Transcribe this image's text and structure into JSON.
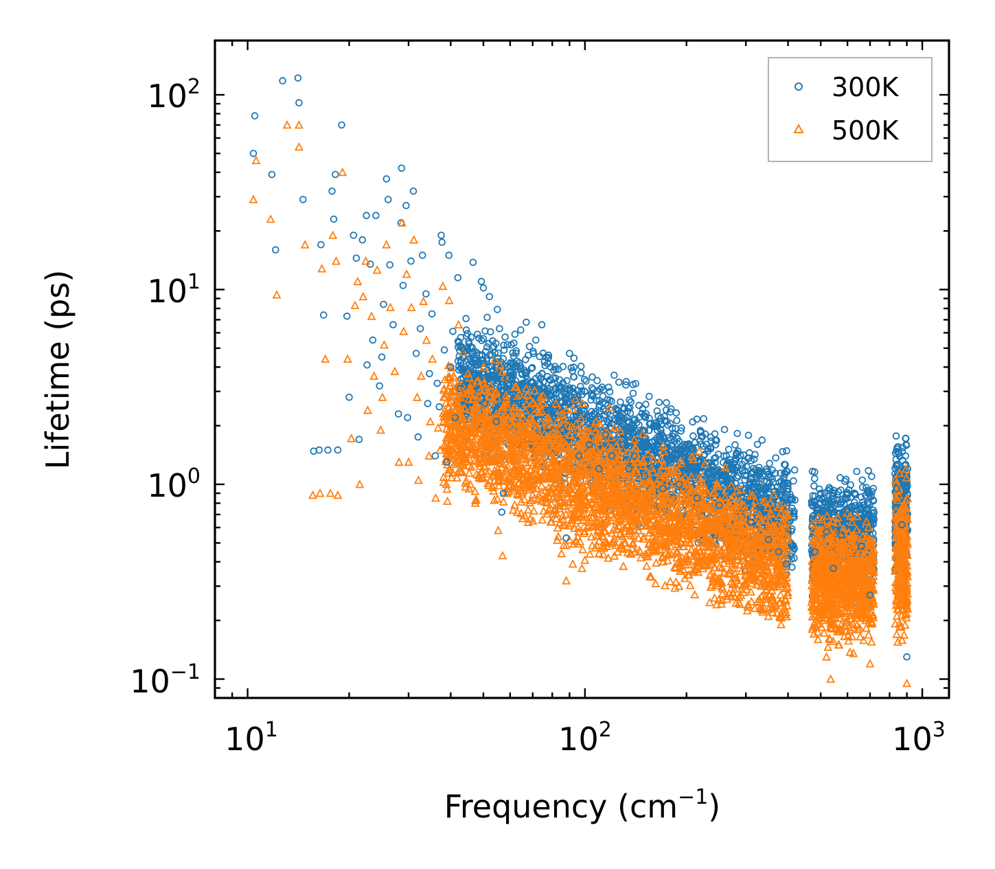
{
  "chart_data": {
    "type": "scatter",
    "title": "",
    "xlabel": "Frequency (cm",
    "xlabel_sup": "−1",
    "xlabel_end": ")",
    "ylabel": "Lifetime (ps)",
    "xscale": "log",
    "yscale": "log",
    "xlim": [
      8,
      1200
    ],
    "ylim": [
      0.08,
      190
    ],
    "x_ticks": [
      {
        "value": 10,
        "base": "10",
        "exp": "1"
      },
      {
        "value": 100,
        "base": "10",
        "exp": "2"
      },
      {
        "value": 1000,
        "base": "10",
        "exp": "3"
      }
    ],
    "y_ticks": [
      {
        "value": 0.1,
        "base": "10",
        "exp": "−1"
      },
      {
        "value": 1,
        "base": "10",
        "exp": "0"
      },
      {
        "value": 10,
        "base": "10",
        "exp": "1"
      },
      {
        "value": 100,
        "base": "10",
        "exp": "2"
      }
    ],
    "legend_position": "top-right",
    "series": [
      {
        "name": "300K",
        "marker": "circle",
        "color": "#1f77b4",
        "points": [
          [
            10.5,
            78
          ],
          [
            10.4,
            50
          ],
          [
            11.8,
            39
          ],
          [
            12.1,
            16
          ],
          [
            12.7,
            118
          ],
          [
            14.1,
            122
          ],
          [
            14.2,
            91
          ],
          [
            14.6,
            29
          ],
          [
            15.7,
            1.48
          ],
          [
            16.3,
            1.5
          ],
          [
            16.5,
            17
          ],
          [
            16.8,
            7.4
          ],
          [
            17.3,
            1.5
          ],
          [
            17.8,
            32
          ],
          [
            18.0,
            23
          ],
          [
            18.2,
            39
          ],
          [
            18.5,
            1.5
          ],
          [
            19.0,
            70
          ],
          [
            19.7,
            7.3
          ],
          [
            20.0,
            2.8
          ],
          [
            20.6,
            19
          ],
          [
            21.0,
            14.5
          ],
          [
            21.4,
            1.7
          ],
          [
            21.9,
            18
          ],
          [
            22.5,
            24
          ],
          [
            22.6,
            4.1
          ],
          [
            23.1,
            13.5
          ],
          [
            23.5,
            5.5
          ],
          [
            24.0,
            24
          ],
          [
            24.6,
            3.2
          ],
          [
            25.0,
            4.5
          ],
          [
            25.3,
            8.4
          ],
          [
            25.8,
            37
          ],
          [
            26.1,
            29
          ],
          [
            26.4,
            13.4
          ],
          [
            27.0,
            6.6
          ],
          [
            28.0,
            2.3
          ],
          [
            28.5,
            22
          ],
          [
            28.6,
            42
          ],
          [
            28.9,
            10.5
          ],
          [
            29.5,
            27
          ],
          [
            29.8,
            2.2
          ],
          [
            30.5,
            14
          ],
          [
            31.0,
            32
          ],
          [
            31.6,
            4.7
          ],
          [
            32.0,
            1.75
          ],
          [
            32.5,
            6.3
          ],
          [
            33.0,
            15
          ],
          [
            33.8,
            9.5
          ],
          [
            34.2,
            2.6
          ],
          [
            34.6,
            3.7
          ],
          [
            35.2,
            7.5
          ],
          [
            36.0,
            1.4
          ],
          [
            36.5,
            3.3
          ],
          [
            37.0,
            2.5
          ],
          [
            37.5,
            19
          ],
          [
            37.7,
            17.5
          ],
          [
            38.3,
            4.9
          ],
          [
            39.0,
            1.3
          ],
          [
            39.5,
            15
          ],
          [
            40.0,
            4.0
          ],
          [
            40.6,
            6.1
          ],
          [
            41.2,
            2.2
          ],
          [
            42.0,
            11.5
          ],
          [
            42.7,
            3.1
          ],
          [
            43.2,
            5.0
          ],
          [
            44.0,
            3.2
          ],
          [
            44.5,
            6.2
          ],
          [
            45.0,
            3.6
          ],
          [
            46.0,
            5.7
          ],
          [
            46.6,
            13.8
          ],
          [
            47.3,
            4.1
          ],
          [
            48.0,
            5.9
          ],
          [
            48.7,
            3.6
          ],
          [
            49.3,
            11
          ],
          [
            50.0,
            10.2
          ],
          [
            50.5,
            2.6
          ],
          [
            51.3,
            7.2
          ],
          [
            52.1,
            9.2
          ],
          [
            53.0,
            4.6
          ],
          [
            53.7,
            5.1
          ],
          [
            54.6,
            2.1
          ],
          [
            55.0,
            7.9
          ],
          [
            55.8,
            6.3
          ],
          [
            56.7,
            0.72
          ],
          [
            57.3,
            0.9
          ],
          [
            58.0,
            5.7
          ],
          [
            59.0,
            3.5
          ],
          [
            60.0,
            4.2
          ],
          [
            61.5,
            2.9
          ],
          [
            62.0,
            5.9
          ],
          [
            63.0,
            4.0
          ],
          [
            64.5,
            6.2
          ],
          [
            66.0,
            3.1
          ],
          [
            67.0,
            6.8
          ],
          [
            68.5,
            5.1
          ],
          [
            70.0,
            2.5
          ],
          [
            71.5,
            5.5
          ],
          [
            73.0,
            3.6
          ],
          [
            74.5,
            6.6
          ],
          [
            76.0,
            3.1
          ],
          [
            78.0,
            4.6
          ],
          [
            80.0,
            2.7
          ],
          [
            82.0,
            3.9
          ],
          [
            84.0,
            2.5
          ],
          [
            86.0,
            1.9
          ],
          [
            88.0,
            0.53
          ],
          [
            90.0,
            4.7
          ],
          [
            93.0,
            2.9
          ],
          [
            96.0,
            1.4
          ],
          [
            100.0,
            2.3
          ],
          [
            103.0,
            1.6
          ],
          [
            107.0,
            2.3
          ],
          [
            110.0,
            1.2
          ],
          [
            115.0,
            1.8
          ],
          [
            120.0,
            1.4
          ],
          [
            125.0,
            2.2
          ],
          [
            130.0,
            1.6
          ],
          [
            135.0,
            1.2
          ],
          [
            140.0,
            1.4
          ],
          [
            150.0,
            1.1
          ],
          [
            160.0,
            1.5
          ],
          [
            170.0,
            0.95
          ],
          [
            180.0,
            1.3
          ],
          [
            190.0,
            1.0
          ],
          [
            200.0,
            1.2
          ],
          [
            215.0,
            0.85
          ],
          [
            230.0,
            1.1
          ],
          [
            250.0,
            0.78
          ],
          [
            270.0,
            0.93
          ],
          [
            290.0,
            0.98
          ],
          [
            310.0,
            0.64
          ],
          [
            330.0,
            0.76
          ],
          [
            350.0,
            0.52
          ],
          [
            375.0,
            0.45
          ],
          [
            395.0,
            0.39
          ],
          [
            480.0,
            0.45
          ],
          [
            500.0,
            0.9
          ],
          [
            520.0,
            0.57
          ],
          [
            545.0,
            0.37
          ],
          [
            575.0,
            0.55
          ],
          [
            600.0,
            0.74
          ],
          [
            630.0,
            0.9
          ],
          [
            660.0,
            0.48
          ],
          [
            700.0,
            0.27
          ],
          [
            840.0,
            0.95
          ],
          [
            870.0,
            0.62
          ],
          [
            895.0,
            1.6
          ],
          [
            900.0,
            0.13
          ],
          [
            905.0,
            1.2
          ]
        ]
      },
      {
        "name": "500K",
        "marker": "triangle",
        "color": "#ff7f0e",
        "points": [
          [
            10.4,
            29
          ],
          [
            10.6,
            46
          ],
          [
            11.7,
            23
          ],
          [
            12.2,
            9.4
          ],
          [
            13.1,
            70
          ],
          [
            14.2,
            70
          ],
          [
            14.2,
            54
          ],
          [
            14.8,
            17
          ],
          [
            15.6,
            0.88
          ],
          [
            16.4,
            0.9
          ],
          [
            16.6,
            12.8
          ],
          [
            17.0,
            4.4
          ],
          [
            17.6,
            0.9
          ],
          [
            17.9,
            19
          ],
          [
            18.3,
            14
          ],
          [
            18.5,
            0.88
          ],
          [
            19.1,
            40
          ],
          [
            19.8,
            4.4
          ],
          [
            20.3,
            1.72
          ],
          [
            20.8,
            8.3
          ],
          [
            21.2,
            11
          ],
          [
            21.5,
            1.0
          ],
          [
            22.0,
            9.2
          ],
          [
            22.4,
            14
          ],
          [
            22.7,
            2.4
          ],
          [
            23.3,
            7.3
          ],
          [
            23.7,
            3.6
          ],
          [
            24.2,
            12.6
          ],
          [
            24.8,
            1.9
          ],
          [
            25.1,
            2.8
          ],
          [
            25.4,
            5.2
          ],
          [
            25.8,
            17
          ],
          [
            26.5,
            8.1
          ],
          [
            27.3,
            3.8
          ],
          [
            28.1,
            1.3
          ],
          [
            28.7,
            22
          ],
          [
            29.0,
            6.1
          ],
          [
            29.6,
            12
          ],
          [
            30.0,
            1.3
          ],
          [
            30.6,
            8.1
          ],
          [
            31.1,
            18
          ],
          [
            31.8,
            2.8
          ],
          [
            32.1,
            1.05
          ],
          [
            32.7,
            3.6
          ],
          [
            33.2,
            8.7
          ],
          [
            33.9,
            5.5
          ],
          [
            34.5,
            1.4
          ],
          [
            34.8,
            2.1
          ],
          [
            35.3,
            4.4
          ],
          [
            36.1,
            0.85
          ],
          [
            36.7,
            1.95
          ],
          [
            37.2,
            1.5
          ],
          [
            37.9,
            10.4
          ],
          [
            38.4,
            2.8
          ],
          [
            39.1,
            0.82
          ],
          [
            39.6,
            8.8
          ],
          [
            40.2,
            2.3
          ],
          [
            40.8,
            3.6
          ],
          [
            41.4,
            1.3
          ],
          [
            42.2,
            6.6
          ],
          [
            42.9,
            1.8
          ],
          [
            43.5,
            3.0
          ],
          [
            44.2,
            1.9
          ],
          [
            45.0,
            3.7
          ],
          [
            46.2,
            3.3
          ],
          [
            47.0,
            2.4
          ],
          [
            48.2,
            3.4
          ],
          [
            49.0,
            2.1
          ],
          [
            50.1,
            4.0
          ],
          [
            51.0,
            1.5
          ],
          [
            52.5,
            3.2
          ],
          [
            53.5,
            2.7
          ],
          [
            54.5,
            3.0
          ],
          [
            55.3,
            0.58
          ],
          [
            56.0,
            4.1
          ],
          [
            57.0,
            0.43
          ],
          [
            58.5,
            2.6
          ],
          [
            60.0,
            1.1
          ],
          [
            61.5,
            2.4
          ],
          [
            63.0,
            0.72
          ],
          [
            64.0,
            2.9
          ],
          [
            65.5,
            1.8
          ],
          [
            67.0,
            3.1
          ],
          [
            68.5,
            0.98
          ],
          [
            70.0,
            2.6
          ],
          [
            72.0,
            1.5
          ],
          [
            74.0,
            2.8
          ],
          [
            76.0,
            0.85
          ],
          [
            78.0,
            2.2
          ],
          [
            80.0,
            1.3
          ],
          [
            82.0,
            2.6
          ],
          [
            84.0,
            0.75
          ],
          [
            86.0,
            0.62
          ],
          [
            88.0,
            0.32
          ],
          [
            90.0,
            1.8
          ],
          [
            92.0,
            0.39
          ],
          [
            95.0,
            1.1
          ],
          [
            98.0,
            0.37
          ],
          [
            102.0,
            0.6
          ],
          [
            106.0,
            1.0
          ],
          [
            110.0,
            0.44
          ],
          [
            115.0,
            0.8
          ],
          [
            120.0,
            0.92
          ],
          [
            125.0,
            0.45
          ],
          [
            130.0,
            0.38
          ],
          [
            135.0,
            0.7
          ],
          [
            140.0,
            0.58
          ],
          [
            150.0,
            0.85
          ],
          [
            160.0,
            0.46
          ],
          [
            170.0,
            0.42
          ],
          [
            180.0,
            0.68
          ],
          [
            190.0,
            0.3
          ],
          [
            200.0,
            0.55
          ],
          [
            215.0,
            0.38
          ],
          [
            230.0,
            0.52
          ],
          [
            250.0,
            0.33
          ],
          [
            270.0,
            0.45
          ],
          [
            290.0,
            0.56
          ],
          [
            310.0,
            0.33
          ],
          [
            330.0,
            0.41
          ],
          [
            350.0,
            0.21
          ],
          [
            360.0,
            0.22
          ],
          [
            375.0,
            0.34
          ],
          [
            395.0,
            0.22
          ],
          [
            480.0,
            0.3
          ],
          [
            500.0,
            0.32
          ],
          [
            520.0,
            0.13
          ],
          [
            535.0,
            0.1
          ],
          [
            550.0,
            0.22
          ],
          [
            575.0,
            0.19
          ],
          [
            600.0,
            0.45
          ],
          [
            625.0,
            0.55
          ],
          [
            650.0,
            0.35
          ],
          [
            680.0,
            0.2
          ],
          [
            700.0,
            0.12
          ],
          [
            840.0,
            0.55
          ],
          [
            870.0,
            0.3
          ],
          [
            895.0,
            1.2
          ],
          [
            900.0,
            0.095
          ],
          [
            905.0,
            0.5
          ]
        ]
      }
    ]
  }
}
